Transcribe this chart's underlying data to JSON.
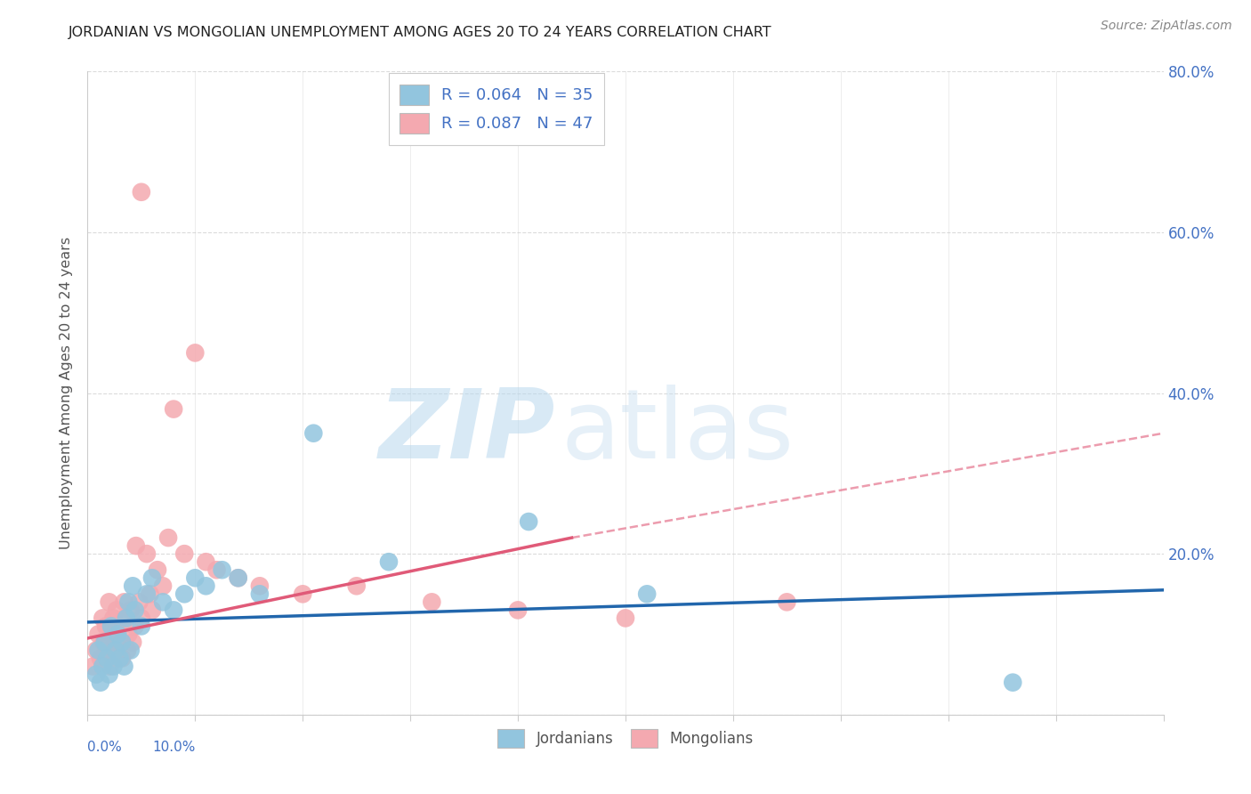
{
  "title": "JORDANIAN VS MONGOLIAN UNEMPLOYMENT AMONG AGES 20 TO 24 YEARS CORRELATION CHART",
  "source": "Source: ZipAtlas.com",
  "ylabel": "Unemployment Among Ages 20 to 24 years",
  "xlim": [
    0.0,
    10.0
  ],
  "ylim": [
    0.0,
    80.0
  ],
  "right_ytick_vals": [
    0,
    20,
    40,
    60,
    80
  ],
  "right_ytick_labels": [
    "",
    "20.0%",
    "40.0%",
    "60.0%",
    "80.0%"
  ],
  "xticks": [
    0.0,
    1.0,
    2.0,
    3.0,
    4.0,
    5.0,
    6.0,
    7.0,
    8.0,
    9.0,
    10.0
  ],
  "watermark_zip": "ZIP",
  "watermark_atlas": "atlas",
  "legend_r_jordan": "R = 0.064",
  "legend_n_jordan": "N = 35",
  "legend_r_mongolia": "R = 0.087",
  "legend_n_mongolia": "N = 47",
  "jordan_color": "#92c5de",
  "mongolia_color": "#f4a9b0",
  "jordan_line_color": "#2166ac",
  "mongolia_line_color": "#e05a78",
  "background_color": "#ffffff",
  "grid_color": "#cccccc",
  "title_color": "#222222",
  "axis_label_color": "#4472c4",
  "jordan_x": [
    0.08,
    0.1,
    0.12,
    0.14,
    0.16,
    0.18,
    0.2,
    0.22,
    0.24,
    0.26,
    0.28,
    0.3,
    0.32,
    0.34,
    0.36,
    0.38,
    0.4,
    0.42,
    0.44,
    0.5,
    0.55,
    0.6,
    0.7,
    0.8,
    0.9,
    1.0,
    1.1,
    1.25,
    1.4,
    1.6,
    2.1,
    2.8,
    4.1,
    5.2,
    8.6
  ],
  "jordan_y": [
    5,
    8,
    4,
    6,
    9,
    7,
    5,
    11,
    6,
    8,
    10,
    7,
    9,
    6,
    12,
    14,
    8,
    16,
    13,
    11,
    15,
    17,
    14,
    13,
    15,
    17,
    16,
    18,
    17,
    15,
    35,
    19,
    24,
    15,
    4
  ],
  "mongolia_x": [
    0.05,
    0.08,
    0.1,
    0.12,
    0.14,
    0.15,
    0.17,
    0.18,
    0.2,
    0.21,
    0.22,
    0.24,
    0.25,
    0.27,
    0.28,
    0.3,
    0.32,
    0.34,
    0.35,
    0.37,
    0.38,
    0.4,
    0.42,
    0.44,
    0.45,
    0.48,
    0.5,
    0.55,
    0.58,
    0.6,
    0.65,
    0.7,
    0.75,
    0.8,
    0.9,
    1.0,
    1.1,
    1.2,
    1.4,
    1.6,
    2.0,
    2.5,
    3.2,
    4.0,
    5.0,
    6.5,
    0.5
  ],
  "mongolia_y": [
    6,
    8,
    10,
    7,
    12,
    9,
    11,
    8,
    14,
    6,
    10,
    12,
    8,
    13,
    9,
    11,
    7,
    14,
    12,
    8,
    10,
    13,
    9,
    11,
    21,
    14,
    12,
    20,
    15,
    13,
    18,
    16,
    22,
    38,
    20,
    45,
    19,
    18,
    17,
    16,
    15,
    16,
    14,
    13,
    12,
    14,
    65
  ],
  "jordan_trend_x0": 0.0,
  "jordan_trend_y0": 11.5,
  "jordan_trend_x1": 10.0,
  "jordan_trend_y1": 15.5,
  "mongolia_solid_x0": 0.0,
  "mongolia_solid_y0": 9.5,
  "mongolia_solid_x1": 4.5,
  "mongolia_solid_y1": 22.0,
  "mongolia_dash_x0": 4.5,
  "mongolia_dash_y0": 22.0,
  "mongolia_dash_x1": 10.0,
  "mongolia_dash_y1": 35.0
}
